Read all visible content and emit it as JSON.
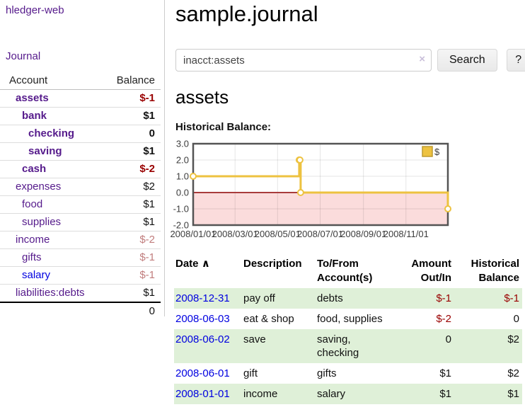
{
  "colors": {
    "link_purple": "#551a8b",
    "link_blue": "#0000e0",
    "neg_strong": "#990000",
    "neg_soft": "#c17d7d",
    "row_green": "#dff0d8",
    "gold": "#edc240",
    "gold_border": "#bf9b30",
    "zero_line": "#a83b3b",
    "negative_fill": "#fbdcdc",
    "grid_border": "#545454"
  },
  "app": {
    "brand": "hledger-web"
  },
  "sidebar": {
    "nav_journal": "Journal",
    "accounts": {
      "headers": {
        "account": "Account",
        "balance": "Balance"
      },
      "rows": [
        {
          "name": "assets",
          "depth": 1,
          "bold": true,
          "link": "visited",
          "balance": "$-1",
          "balance_color": "neg-strong"
        },
        {
          "name": "bank",
          "depth": 2,
          "bold": true,
          "link": "visited",
          "balance": "$1",
          "balance_color": "default"
        },
        {
          "name": "checking",
          "depth": 3,
          "bold": true,
          "link": "visited",
          "balance": "0",
          "balance_color": "default"
        },
        {
          "name": "saving",
          "depth": 3,
          "bold": true,
          "link": "visited",
          "balance": "$1",
          "balance_color": "default"
        },
        {
          "name": "cash",
          "depth": 2,
          "bold": true,
          "link": "visited",
          "balance": "$-2",
          "balance_color": "neg-strong"
        },
        {
          "name": "expenses",
          "depth": 1,
          "bold": false,
          "link": "visited",
          "balance": "$2",
          "balance_color": "default"
        },
        {
          "name": "food",
          "depth": 2,
          "bold": false,
          "link": "visited",
          "balance": "$1",
          "balance_color": "default"
        },
        {
          "name": "supplies",
          "depth": 2,
          "bold": false,
          "link": "visited",
          "balance": "$1",
          "balance_color": "default"
        },
        {
          "name": "income",
          "depth": 1,
          "bold": false,
          "link": "visited",
          "balance": "$-2",
          "balance_color": "neg-soft"
        },
        {
          "name": "gifts",
          "depth": 2,
          "bold": false,
          "link": "visited",
          "balance": "$-1",
          "balance_color": "neg-soft"
        },
        {
          "name": "salary",
          "depth": 2,
          "bold": false,
          "link": "unvisited",
          "balance": "$-1",
          "balance_color": "neg-soft"
        },
        {
          "name": "liabilities:debts",
          "depth": 1,
          "bold": false,
          "link": "visited",
          "balance": "$1",
          "balance_color": "default"
        }
      ],
      "total": "0"
    }
  },
  "main": {
    "title": "sample.journal",
    "search": {
      "value": "inacct:assets",
      "clear_icon": "×",
      "search_button": "Search",
      "help_button": "?"
    },
    "account_heading": "assets",
    "chart_label": "Historical Balance:"
  },
  "chart_data": {
    "type": "line",
    "title": "Historical Balance",
    "step": true,
    "ylim": [
      -2,
      3
    ],
    "y_ticks": [
      {
        "value": 3,
        "label": "3.0"
      },
      {
        "value": 2,
        "label": "2.0"
      },
      {
        "value": 1,
        "label": "1.0"
      },
      {
        "value": 0,
        "label": "0.0"
      },
      {
        "value": -1,
        "label": "-1.0"
      },
      {
        "value": -2,
        "label": "-2.0"
      }
    ],
    "x_range_days": [
      0,
      365
    ],
    "x_ticks": [
      {
        "day": 0,
        "label": "2008/01/01"
      },
      {
        "day": 60,
        "label": "2008/03/01"
      },
      {
        "day": 121,
        "label": "2008/05/01"
      },
      {
        "day": 182,
        "label": "2008/07/01"
      },
      {
        "day": 244,
        "label": "2008/09/01"
      },
      {
        "day": 305,
        "label": "2008/11/01"
      }
    ],
    "series": [
      {
        "name": "$",
        "points": [
          {
            "date": "2008-01-01",
            "day": 0,
            "value": 1
          },
          {
            "date": "2008-06-01",
            "day": 152,
            "value": 2
          },
          {
            "date": "2008-06-02",
            "day": 153,
            "value": 2
          },
          {
            "date": "2008-06-03",
            "day": 154,
            "value": 0
          },
          {
            "date": "2008-12-31",
            "day": 365,
            "value": -1
          }
        ]
      }
    ],
    "legend": {
      "label": "$",
      "position": "top-right"
    },
    "grid": true,
    "negative_region_shaded": true
  },
  "register": {
    "headers": [
      {
        "label": "Date",
        "sort": "∧"
      },
      {
        "label": "Description"
      },
      {
        "label": "To/From Account(s)"
      },
      {
        "label": "Amount Out/In"
      },
      {
        "label": "Historical Balance"
      }
    ],
    "rows": [
      {
        "date": "2008-12-31",
        "description": "pay off",
        "accounts": "debts",
        "amount": "$-1",
        "amount_neg": true,
        "balance": "$-1",
        "balance_neg": true
      },
      {
        "date": "2008-06-03",
        "description": "eat & shop",
        "accounts": "food, supplies",
        "amount": "$-2",
        "amount_neg": true,
        "balance": "0",
        "balance_neg": false
      },
      {
        "date": "2008-06-02",
        "description": "save",
        "accounts": "saving, checking",
        "amount": "0",
        "amount_neg": false,
        "balance": "$2",
        "balance_neg": false
      },
      {
        "date": "2008-06-01",
        "description": "gift",
        "accounts": "gifts",
        "amount": "$1",
        "amount_neg": false,
        "balance": "$2",
        "balance_neg": false
      },
      {
        "date": "2008-01-01",
        "description": "income",
        "accounts": "salary",
        "amount": "$1",
        "amount_neg": false,
        "balance": "$1",
        "balance_neg": false
      }
    ]
  }
}
